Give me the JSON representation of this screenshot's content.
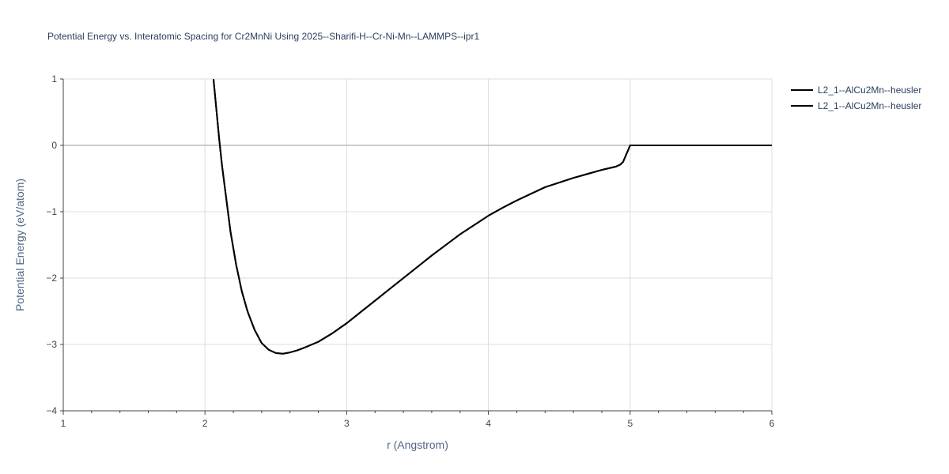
{
  "chart_data": {
    "type": "line",
    "title": "Potential Energy vs. Interatomic Spacing for Cr2MnNi Using 2025--Sharifi-H--Cr-Ni-Mn--LAMMPS--ipr1",
    "xlabel": "r (Angstrom)",
    "ylabel": "Potential Energy (eV/atom)",
    "xlim": [
      1,
      6
    ],
    "ylim": [
      -4,
      1
    ],
    "xticks": [
      "1",
      "2",
      "3",
      "4",
      "5",
      "6"
    ],
    "yticks": [
      "1",
      "0",
      "−1",
      "−2",
      "−3",
      "−4"
    ],
    "grid": true,
    "legend_position": "top-right",
    "line_color": "#000000",
    "series": [
      {
        "name": "L2_1--AlCu2Mn--heusler",
        "x": [
          2.06,
          2.08,
          2.1,
          2.12,
          2.15,
          2.18,
          2.22,
          2.26,
          2.3,
          2.35,
          2.4,
          2.45,
          2.5,
          2.55,
          2.6,
          2.65,
          2.7,
          2.8,
          2.9,
          3.0,
          3.1,
          3.2,
          3.3,
          3.4,
          3.5,
          3.6,
          3.7,
          3.8,
          3.9,
          4.0,
          4.1,
          4.2,
          4.3,
          4.4,
          4.5,
          4.6,
          4.7,
          4.8,
          4.9,
          4.93,
          4.95,
          4.97,
          5.0,
          5.5,
          6.0
        ],
        "y": [
          1.0,
          0.55,
          0.1,
          -0.3,
          -0.8,
          -1.3,
          -1.8,
          -2.2,
          -2.5,
          -2.78,
          -2.98,
          -3.08,
          -3.13,
          -3.14,
          -3.12,
          -3.09,
          -3.05,
          -2.96,
          -2.83,
          -2.68,
          -2.51,
          -2.34,
          -2.17,
          -2.0,
          -1.83,
          -1.66,
          -1.5,
          -1.34,
          -1.2,
          -1.06,
          -0.94,
          -0.83,
          -0.73,
          -0.63,
          -0.56,
          -0.49,
          -0.43,
          -0.37,
          -0.32,
          -0.29,
          -0.25,
          -0.15,
          0.0,
          0.0,
          0.0
        ]
      },
      {
        "name": "L2_1--AlCu2Mn--heusler",
        "x": [
          2.06,
          2.08,
          2.1,
          2.12,
          2.15,
          2.18,
          2.22,
          2.26,
          2.3,
          2.35,
          2.4,
          2.45,
          2.5,
          2.55,
          2.6,
          2.65,
          2.7,
          2.8,
          2.9,
          3.0,
          3.1,
          3.2,
          3.3,
          3.4,
          3.5,
          3.6,
          3.7,
          3.8,
          3.9,
          4.0,
          4.1,
          4.2,
          4.3,
          4.4,
          4.5,
          4.6,
          4.7,
          4.8,
          4.9,
          4.93,
          4.95,
          4.97,
          5.0,
          5.5,
          6.0
        ],
        "y": [
          1.0,
          0.55,
          0.1,
          -0.3,
          -0.8,
          -1.3,
          -1.8,
          -2.2,
          -2.5,
          -2.78,
          -2.98,
          -3.08,
          -3.13,
          -3.14,
          -3.12,
          -3.09,
          -3.05,
          -2.96,
          -2.83,
          -2.68,
          -2.51,
          -2.34,
          -2.17,
          -2.0,
          -1.83,
          -1.66,
          -1.5,
          -1.34,
          -1.2,
          -1.06,
          -0.94,
          -0.83,
          -0.73,
          -0.63,
          -0.56,
          -0.49,
          -0.43,
          -0.37,
          -0.32,
          -0.29,
          -0.25,
          -0.15,
          0.0,
          0.0,
          0.0
        ]
      }
    ]
  }
}
